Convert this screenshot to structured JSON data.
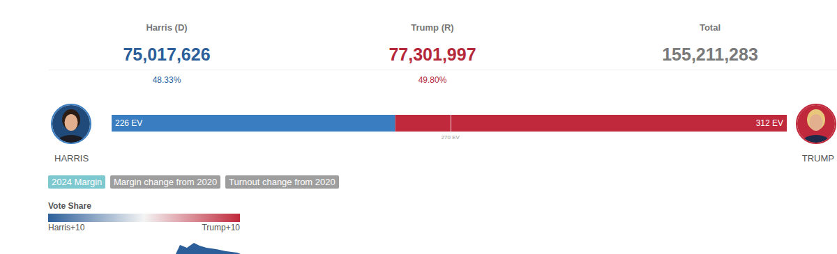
{
  "header": {
    "columns": [
      {
        "label": "Harris (D)",
        "votes": "75,017,626",
        "share": "48.33%",
        "color": "#2c5f9a"
      },
      {
        "label": "Trump (R)",
        "votes": "77,301,997",
        "share": "49.80%",
        "color": "#b5283a"
      },
      {
        "label": "Total",
        "votes": "155,211,283",
        "color": "#7a7a7a"
      }
    ]
  },
  "chart_data": {
    "type": "bar",
    "orientation": "horizontal",
    "stacked": true,
    "data_labels": true,
    "tick_labels": false,
    "categories": [
      null
    ],
    "xlim": [
      0,
      538
    ],
    "series": [
      {
        "name": "HARRIS",
        "color": "#3a7dc0",
        "values": [
          226
        ],
        "value_labels": [
          "226 EV"
        ]
      },
      {
        "name": "TRUMP",
        "color": "#c0293b",
        "values": [
          312
        ],
        "value_labels": [
          "312 EV"
        ]
      }
    ],
    "annotations": [
      {
        "value": 270,
        "label": "270 EV"
      }
    ]
  },
  "tabs": [
    {
      "label": "2024 Margin",
      "active": true
    },
    {
      "label": "Margin change from 2020",
      "active": false
    },
    {
      "label": "Turnout change from 2020",
      "active": false
    }
  ],
  "color_legend": {
    "title": "Vote Share",
    "low_label": "Harris+10",
    "high_label": "Trump+10",
    "colors": [
      "#2c5f9a",
      "#f4f4f4",
      "#c0293b"
    ]
  }
}
